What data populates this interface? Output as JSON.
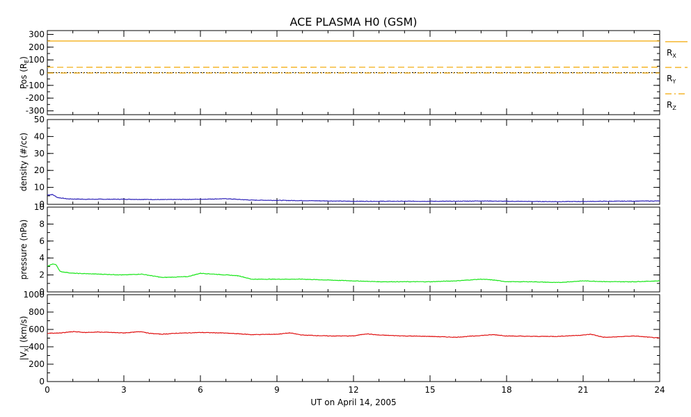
{
  "figure": {
    "title": "ACE PLASMA H0 (GSM)",
    "xlabel": "UT on April 14, 2005",
    "xticks": [
      "0",
      "3",
      "6",
      "9",
      "12",
      "15",
      "18",
      "21",
      "24"
    ]
  },
  "colors": {
    "position": "#f2a800",
    "density": "#2b20b8",
    "pressure": "#19e619",
    "velocity": "#e01010",
    "zero_line": "#000000"
  },
  "legend": [
    {
      "base": "R",
      "sub": "X",
      "style": "solid"
    },
    {
      "base": "R",
      "sub": "Y",
      "style": "dashed"
    },
    {
      "base": "R",
      "sub": "Z",
      "style": "dash-dot"
    }
  ],
  "chart_data": [
    {
      "type": "line",
      "ylabel": {
        "pre": "Pos (R",
        "sub": "E",
        "post": ")"
      },
      "yticks": [
        "300",
        "200",
        "100",
        "0",
        "-100",
        "-200",
        "-300"
      ],
      "ylim": [
        -330,
        330
      ],
      "x": [
        0,
        24
      ],
      "series": [
        {
          "name": "R_X",
          "style": "solid",
          "values": [
            248,
            248
          ]
        },
        {
          "name": "R_Y",
          "style": "dashed",
          "values": [
            42,
            43
          ]
        },
        {
          "name": "R_Z",
          "style": "dash-dot",
          "values": [
            -3,
            -3
          ]
        }
      ],
      "zero_line": true
    },
    {
      "type": "line",
      "ylabel": "density (#/cc)",
      "yticks": [
        "50",
        "40",
        "30",
        "20",
        "10",
        "0"
      ],
      "ylim": [
        0,
        50
      ],
      "x": [
        0,
        0.2,
        0.4,
        0.8,
        1.5,
        3,
        4.5,
        6,
        7,
        8,
        10,
        12,
        14,
        16,
        17,
        18,
        20,
        22,
        24
      ],
      "series": [
        {
          "name": "",
          "values": [
            5.5,
            5.8,
            4,
            3.2,
            3.0,
            3.0,
            2.8,
            3.0,
            3.3,
            2.5,
            2.2,
            1.8,
            1.8,
            1.8,
            2.0,
            1.8,
            1.6,
            1.8,
            2.0
          ]
        }
      ]
    },
    {
      "type": "line",
      "ylabel": "pressure (nPa)",
      "yticks": [
        "10",
        "8",
        "6",
        "4",
        "2",
        "0"
      ],
      "ylim": [
        0,
        10
      ],
      "x": [
        0,
        0.2,
        0.35,
        0.5,
        1,
        2,
        3,
        3.7,
        4.5,
        5.5,
        6,
        7,
        7.5,
        8,
        9,
        10,
        11,
        12,
        13,
        14,
        15,
        16,
        17,
        17.5,
        18,
        19,
        20,
        21,
        22,
        23,
        24
      ],
      "series": [
        {
          "name": "",
          "values": [
            3.0,
            3.3,
            3.2,
            2.4,
            2.2,
            2.1,
            2.0,
            2.1,
            1.7,
            1.8,
            2.2,
            2.0,
            1.9,
            1.5,
            1.5,
            1.5,
            1.4,
            1.3,
            1.2,
            1.2,
            1.2,
            1.3,
            1.5,
            1.4,
            1.2,
            1.2,
            1.1,
            1.3,
            1.2,
            1.2,
            1.3
          ]
        }
      ]
    },
    {
      "type": "line",
      "ylabel": {
        "pre": "|V",
        "sub": "X",
        "post": "| (km/s)"
      },
      "yticks": [
        "1000",
        "800",
        "600",
        "400",
        "200",
        "0"
      ],
      "ylim": [
        0,
        1000
      ],
      "x": [
        0,
        0.5,
        1,
        1.5,
        2,
        3,
        3.7,
        4,
        4.5,
        5,
        6,
        6.8,
        7.5,
        8,
        9,
        9.5,
        10,
        11,
        12,
        12.5,
        13,
        14,
        15,
        16,
        17,
        17.5,
        18,
        19,
        20,
        21,
        21.3,
        21.8,
        22,
        23,
        24
      ],
      "series": [
        {
          "name": "",
          "values": [
            555,
            560,
            575,
            565,
            570,
            560,
            575,
            555,
            545,
            555,
            565,
            560,
            550,
            540,
            545,
            560,
            535,
            525,
            525,
            550,
            535,
            525,
            520,
            510,
            530,
            540,
            525,
            520,
            520,
            535,
            545,
            510,
            510,
            525,
            500
          ]
        }
      ]
    }
  ]
}
